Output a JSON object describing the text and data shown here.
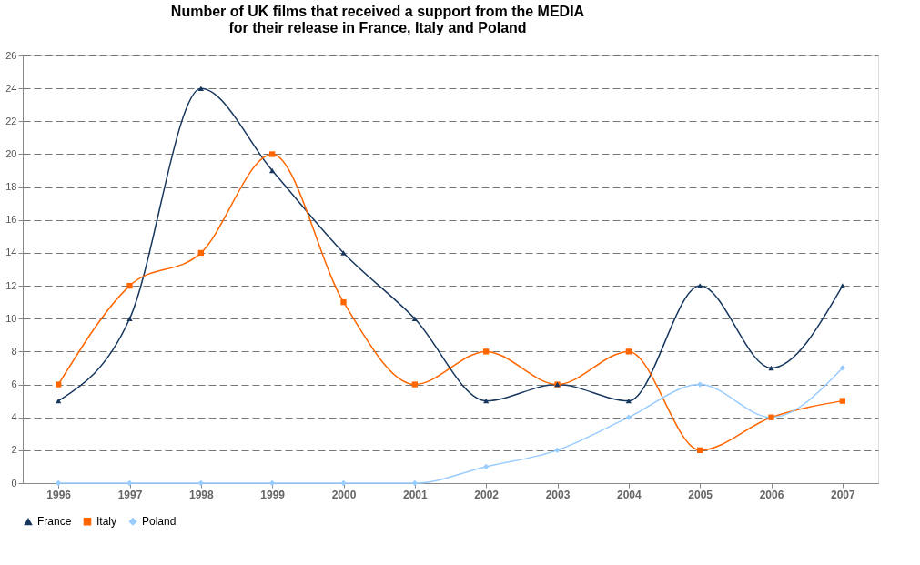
{
  "chart_data": {
    "type": "line",
    "title": "Number of UK films that received a support from the MEDIA\nfor their release in France, Italy and Poland",
    "categories": [
      "1996",
      "1997",
      "1998",
      "1999",
      "2000",
      "2001",
      "2002",
      "2003",
      "2004",
      "2005",
      "2006",
      "2007"
    ],
    "series": [
      {
        "name": "France",
        "color": "#17375e",
        "marker": "triangle",
        "values": [
          5,
          10,
          24,
          19,
          14,
          10,
          5,
          6,
          5,
          12,
          7,
          12
        ]
      },
      {
        "name": "Italy",
        "color": "#ff6600",
        "marker": "square",
        "values": [
          6,
          12,
          14,
          20,
          11,
          6,
          8,
          6,
          8,
          2,
          4,
          5
        ]
      },
      {
        "name": "Poland",
        "color": "#99ccff",
        "marker": "diamond",
        "values": [
          0,
          0,
          0,
          0,
          0,
          0,
          1,
          2,
          4,
          6,
          4,
          7
        ]
      }
    ],
    "ylim": [
      0,
      26
    ],
    "yticks": [
      0,
      2,
      4,
      6,
      8,
      10,
      12,
      14,
      16,
      18,
      20,
      22,
      24,
      26
    ],
    "grid": "y",
    "legend": "bottom",
    "line_style": "solid"
  }
}
